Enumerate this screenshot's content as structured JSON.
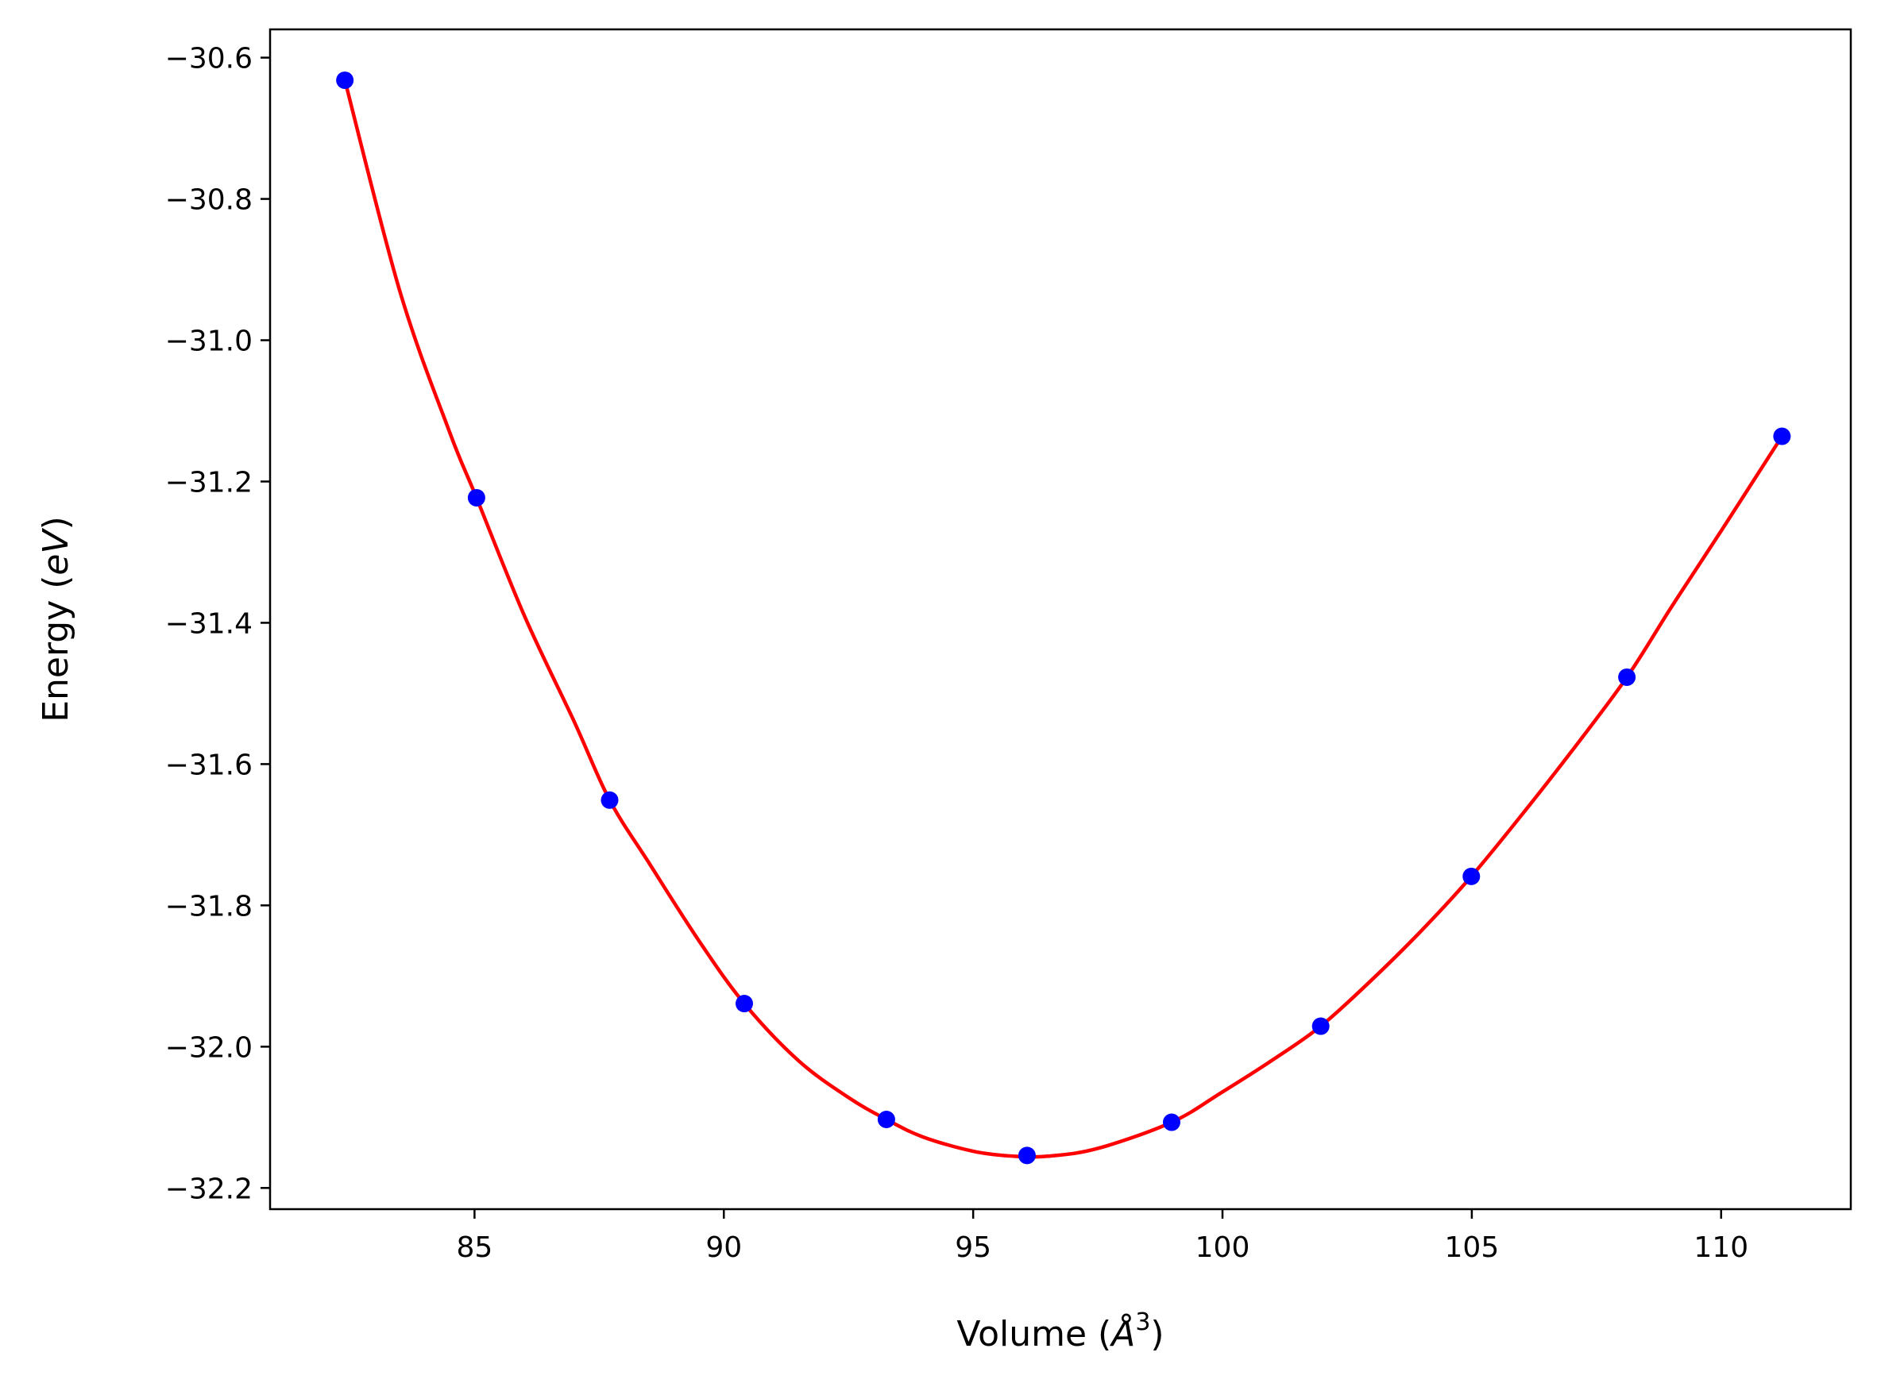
{
  "chart_data": {
    "type": "scatter",
    "title": "",
    "xlabel": "Volume (Å³)",
    "xlabel_parts": {
      "prefix": "Volume (",
      "symbol": "Å",
      "sup": "3",
      "suffix": ")"
    },
    "ylabel": "Energy (eV)",
    "ylabel_parts": {
      "prefix": "Energy (",
      "unit": "eV",
      "suffix": ")"
    },
    "xlim": [
      80.9,
      112.6
    ],
    "ylim": [
      -32.23,
      -30.56
    ],
    "xticks": [
      85,
      90,
      95,
      100,
      105,
      110
    ],
    "xtick_labels": [
      "85",
      "90",
      "95",
      "100",
      "105",
      "110"
    ],
    "yticks": [
      -30.6,
      -30.8,
      -31.0,
      -31.2,
      -31.4,
      -31.6,
      -31.8,
      -32.0,
      -32.2
    ],
    "ytick_labels": [
      "−30.6",
      "−30.8",
      "−31.0",
      "−31.2",
      "−31.4",
      "−31.6",
      "−31.8",
      "−32.0",
      "−32.2"
    ],
    "grid": false,
    "legend": "none",
    "series": [
      {
        "kind": "markers",
        "color": "#0000ff",
        "x": [
          82.4,
          85.04,
          87.71,
          90.41,
          93.26,
          96.08,
          98.98,
          101.97,
          104.99,
          108.11,
          111.22
        ],
        "y": [
          -30.632,
          -31.223,
          -31.651,
          -31.939,
          -32.103,
          -32.154,
          -32.107,
          -31.971,
          -31.759,
          -31.477,
          -31.136
        ]
      },
      {
        "kind": "fit-curve",
        "color": "#ff0000",
        "x": [
          82.4,
          83.5,
          84.5,
          85.04,
          86.0,
          87.0,
          87.71,
          88.5,
          89.5,
          90.41,
          91.5,
          92.5,
          93.26,
          94.0,
          95.0,
          95.8,
          96.5,
          97.5,
          98.98,
          100.0,
          101.0,
          101.97,
          103.0,
          104.0,
          104.99,
          106.0,
          107.0,
          108.11,
          109.0,
          110.0,
          111.22
        ],
        "y": [
          -30.632,
          -30.93,
          -31.13,
          -31.223,
          -31.39,
          -31.54,
          -31.651,
          -31.74,
          -31.85,
          -31.939,
          -32.02,
          -32.072,
          -32.103,
          -32.128,
          -32.148,
          -32.155,
          -32.155,
          -32.144,
          -32.107,
          -32.064,
          -32.019,
          -31.971,
          -31.905,
          -31.835,
          -31.759,
          -31.672,
          -31.582,
          -31.477,
          -31.378,
          -31.27,
          -31.136
        ]
      }
    ]
  }
}
